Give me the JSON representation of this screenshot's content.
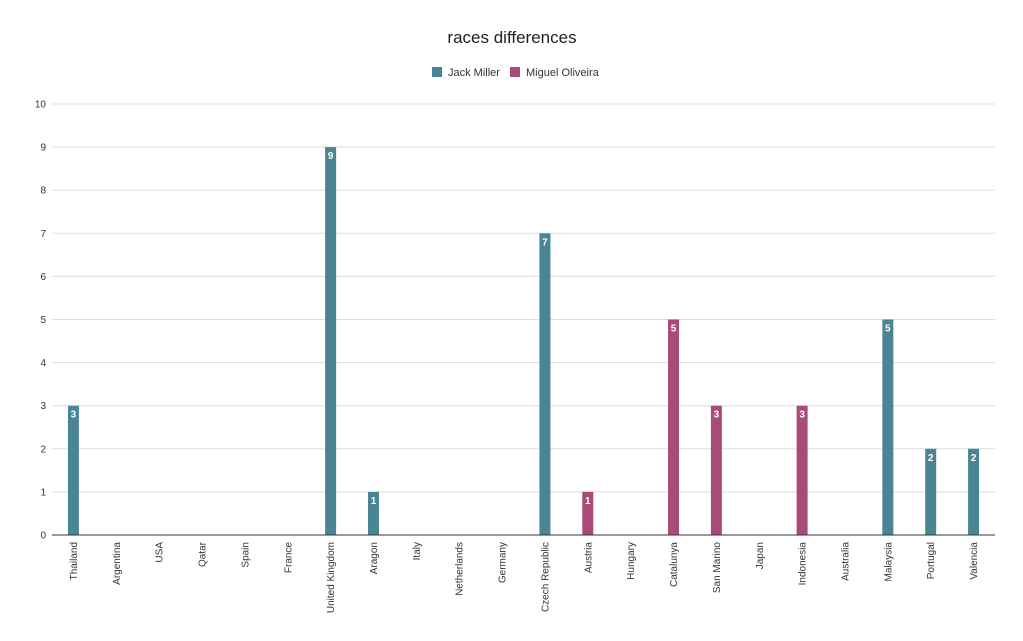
{
  "chart_data": {
    "type": "bar",
    "title": "races differences",
    "xlabel": "",
    "ylabel": "",
    "ylim": [
      0,
      10
    ],
    "yticks": [
      0,
      1,
      2,
      3,
      4,
      5,
      6,
      7,
      8,
      9,
      10
    ],
    "grid": true,
    "legend_position": "top",
    "categories": [
      "Thailand",
      "Argentina",
      "USA",
      "Qatar",
      "Spain",
      "France",
      "United Kingdom",
      "Aragon",
      "Italy",
      "Netherlands",
      "Germany",
      "Czech Republic",
      "Austria",
      "Hungary",
      "Catalunya",
      "San Marino",
      "Japan",
      "Indonesia",
      "Australia",
      "Malaysia",
      "Portugal",
      "Valencia"
    ],
    "series": [
      {
        "name": "Jack Miller",
        "color": "#4a8593",
        "values": [
          3,
          0,
          0,
          0,
          0,
          0,
          9,
          1,
          0,
          0,
          0,
          7,
          0,
          0,
          0,
          0,
          0,
          0,
          0,
          5,
          2,
          2
        ]
      },
      {
        "name": "Miguel Oliveira",
        "color": "#a84b78",
        "values": [
          0,
          0,
          0,
          0,
          0,
          0,
          0,
          0,
          0,
          0,
          0,
          0,
          1,
          0,
          5,
          3,
          0,
          3,
          0,
          0,
          0,
          0
        ]
      }
    ]
  }
}
